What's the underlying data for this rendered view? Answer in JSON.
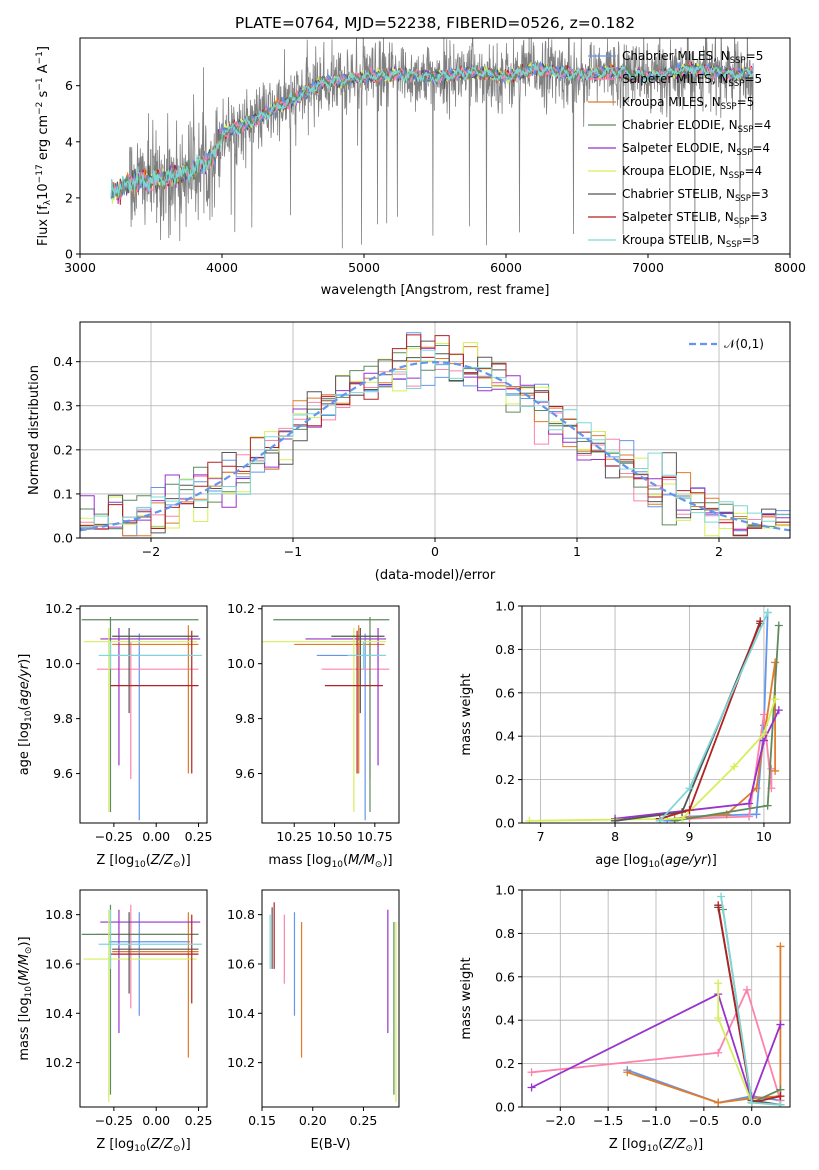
{
  "figure": {
    "title": "PLATE=0764, MJD=52238, FIBERID=0526, z=0.182"
  },
  "colors": {
    "Chabrier MILES": "#6495ed",
    "Salpeter MILES": "#ff82ab",
    "Kroupa MILES": "#e07b2a",
    "Chabrier ELODIE": "#5f8a5f",
    "Salpeter ELODIE": "#9932cc",
    "Kroupa ELODIE": "#d4f05a",
    "Chabrier STELIB": "#555555",
    "Salpeter STELIB": "#b22222",
    "Kroupa STELIB": "#7fd6d6"
  },
  "chart_data": [
    {
      "id": "spectrum",
      "type": "line",
      "title": "PLATE=0764, MJD=52238, FIBERID=0526, z=0.182",
      "xlabel": "wavelength [Angstrom, rest frame]",
      "ylabel_html": [
        "Flux [f",
        "λ",
        "10",
        "−17",
        " erg cm",
        "−2",
        " s",
        "−1",
        " A",
        "−1",
        "]"
      ],
      "xlim": [
        3000,
        8000
      ],
      "ylim": [
        0,
        7.7
      ],
      "xticks": [
        "3000",
        "4000",
        "5000",
        "6000",
        "7000",
        "8000"
      ],
      "yticks": [
        "0",
        "2",
        "4",
        "6"
      ],
      "legend": [
        {
          "name": "Chabrier MILES",
          "nssp": "5"
        },
        {
          "name": "Salpeter MILES",
          "nssp": "5"
        },
        {
          "name": "Kroupa MILES",
          "nssp": "5"
        },
        {
          "name": "Chabrier ELODIE",
          "nssp": "4"
        },
        {
          "name": "Salpeter ELODIE",
          "nssp": "4"
        },
        {
          "name": "Kroupa ELODIE",
          "nssp": "4"
        },
        {
          "name": "Chabrier STELIB",
          "nssp": "3"
        },
        {
          "name": "Salpeter STELIB",
          "nssp": "3"
        },
        {
          "name": "Kroupa STELIB",
          "nssp": "3"
        }
      ],
      "legend_placement": "top-right",
      "data_range_x": [
        3220,
        7740
      ],
      "continuum": {
        "x": [
          3220,
          3400,
          3600,
          3800,
          3950,
          4000,
          4200,
          4500,
          4700,
          5000,
          5200,
          5500,
          5800,
          6000,
          6200,
          6500,
          6800,
          7000,
          7300,
          7600,
          7740
        ],
        "y": [
          2.2,
          2.6,
          2.7,
          3.0,
          3.5,
          4.3,
          4.7,
          5.5,
          6.1,
          6.3,
          6.4,
          6.3,
          6.5,
          6.3,
          6.6,
          6.4,
          6.5,
          6.3,
          6.6,
          6.4,
          6.5
        ]
      },
      "grid": false
    },
    {
      "id": "residuals",
      "type": "step",
      "xlabel": "(data-model)/error",
      "ylabel": "Normed distribution",
      "xlim": [
        -2.5,
        2.5
      ],
      "ylim": [
        0,
        0.49
      ],
      "xticks": [
        "−2",
        "−1",
        "0",
        "1",
        "2"
      ],
      "yticks": [
        "0.0",
        "0.1",
        "0.2",
        "0.3",
        "0.4"
      ],
      "bin_width": 0.1,
      "reference_curve": {
        "name": "𝒩(0,1)",
        "style": "dashed"
      },
      "legend_placement": "top-right",
      "grid": true
    },
    {
      "id": "age_vs_Z",
      "type": "errorbar",
      "xlabel": "Z [log10(Z/Z⊙)]",
      "ylabel": "age  [log10(age/yr)]",
      "xlim": [
        -0.45,
        0.3
      ],
      "ylim": [
        9.42,
        10.21
      ],
      "xticks": [
        "−0.25",
        "0.00",
        "0.25"
      ],
      "yticks": [
        "9.6",
        "9.8",
        "10.0",
        "10.2"
      ],
      "points": [
        {
          "series": "Chabrier MILES",
          "x": -0.1,
          "xerr": [
            0.18,
            0.3
          ],
          "y": 10.03,
          "yerr": [
            0.6,
            0.08
          ]
        },
        {
          "series": "Salpeter MILES",
          "x": -0.15,
          "xerr": [
            0.2,
            0.4
          ],
          "y": 9.98,
          "yerr": [
            0.4,
            0.1
          ]
        },
        {
          "series": "Kroupa MILES",
          "x": 0.19,
          "xerr": [
            0.45,
            0.06
          ],
          "y": 10.07,
          "yerr": [
            0.47,
            0.07
          ]
        },
        {
          "series": "Chabrier ELODIE",
          "x": -0.27,
          "xerr": [
            0.17,
            0.52
          ],
          "y": 10.16,
          "yerr": [
            0.7,
            0.01
          ]
        },
        {
          "series": "Salpeter ELODIE",
          "x": -0.22,
          "xerr": [
            0.11,
            0.48
          ],
          "y": 10.09,
          "yerr": [
            0.46,
            0.04
          ]
        },
        {
          "series": "Kroupa ELODIE",
          "x": -0.28,
          "xerr": [
            0.15,
            0.52
          ],
          "y": 10.08,
          "yerr": [
            0.62,
            0.05
          ]
        },
        {
          "series": "Chabrier STELIB",
          "x": -0.16,
          "xerr": [
            0.1,
            0.41
          ],
          "y": 10.1,
          "yerr": [
            0.28,
            0.03
          ]
        },
        {
          "series": "Salpeter STELIB",
          "x": 0.21,
          "xerr": [
            0.48,
            0.04
          ],
          "y": 9.92,
          "yerr": [
            0.32,
            0.2
          ]
        },
        {
          "series": "Kroupa STELIB",
          "x": -0.27,
          "xerr": [
            0.07,
            0.54
          ],
          "y": 10.03,
          "yerr": [
            0.05,
            0.05
          ]
        }
      ],
      "grid": false
    },
    {
      "id": "age_vs_mass",
      "type": "errorbar",
      "xlabel": "mass [log10(M/M⊙)]",
      "ylabel": "",
      "xlim": [
        10.05,
        10.9
      ],
      "ylim": [
        9.42,
        10.21
      ],
      "xticks": [
        "10.25",
        "10.50",
        "10.75"
      ],
      "yticks": [
        "9.6",
        "9.8",
        "10.0",
        "10.2"
      ],
      "points": [
        {
          "series": "Chabrier MILES",
          "x": 10.69,
          "xerr": [
            0.3,
            0.12
          ],
          "y": 10.03,
          "yerr": [
            0.6,
            0.08
          ]
        },
        {
          "series": "Salpeter MILES",
          "x": 10.72,
          "xerr": [
            0.3,
            0.12
          ],
          "y": 9.98,
          "yerr": [
            0.4,
            0.1
          ]
        },
        {
          "series": "Kroupa MILES",
          "x": 10.65,
          "xerr": [
            0.4,
            0.16
          ],
          "y": 10.07,
          "yerr": [
            0.47,
            0.07
          ]
        },
        {
          "series": "Chabrier ELODIE",
          "x": 10.72,
          "xerr": [
            0.6,
            0.12
          ],
          "y": 10.16,
          "yerr": [
            0.7,
            0.01
          ]
        },
        {
          "series": "Salpeter ELODIE",
          "x": 10.77,
          "xerr": [
            0.45,
            0.05
          ],
          "y": 10.09,
          "yerr": [
            0.46,
            0.04
          ]
        },
        {
          "series": "Kroupa ELODIE",
          "x": 10.62,
          "xerr": [
            0.58,
            0.2
          ],
          "y": 10.08,
          "yerr": [
            0.62,
            0.05
          ]
        },
        {
          "series": "Chabrier STELIB",
          "x": 10.66,
          "xerr": [
            0.18,
            0.15
          ],
          "y": 10.1,
          "yerr": [
            0.28,
            0.03
          ]
        },
        {
          "series": "Salpeter STELIB",
          "x": 10.64,
          "xerr": [
            0.2,
            0.16
          ],
          "y": 9.92,
          "yerr": [
            0.32,
            0.2
          ]
        },
        {
          "series": "Kroupa STELIB",
          "x": 10.68,
          "xerr": [
            0.1,
            0.14
          ],
          "y": 10.03,
          "yerr": [
            0.05,
            0.05
          ]
        }
      ],
      "grid": false
    },
    {
      "id": "sfh_age",
      "type": "line",
      "xlabel": "age  [log10(age/yr)]",
      "ylabel": "mass weight",
      "xlim": [
        6.75,
        10.35
      ],
      "ylim": [
        0,
        1.0
      ],
      "xticks": [
        "7",
        "8",
        "9",
        "10"
      ],
      "yticks": [
        "0.0",
        "0.2",
        "0.4",
        "0.6",
        "0.8",
        "1.0"
      ],
      "series": [
        {
          "name": "Chabrier MILES",
          "x": [
            8.7,
            9.0,
            9.9,
            10.0,
            10.05
          ],
          "y": [
            0.01,
            0.03,
            0.04,
            0.45,
            0.97
          ]
        },
        {
          "name": "Salpeter MILES",
          "x": [
            9.0,
            9.8,
            10.0,
            10.1,
            10.1
          ],
          "y": [
            0.02,
            0.03,
            0.5,
            0.16,
            0.25
          ]
        },
        {
          "name": "Kroupa MILES",
          "x": [
            8.8,
            9.5,
            9.9,
            10.15,
            10.15
          ],
          "y": [
            0.02,
            0.04,
            0.16,
            0.74,
            0.24
          ]
        },
        {
          "name": "Chabrier ELODIE",
          "x": [
            8.8,
            10.05,
            10.2
          ],
          "y": [
            0.01,
            0.08,
            0.91
          ]
        },
        {
          "name": "Salpeter ELODIE",
          "x": [
            8.0,
            9.8,
            10.0,
            10.2
          ],
          "y": [
            0.02,
            0.09,
            0.38,
            0.52
          ]
        },
        {
          "name": "Kroupa ELODIE",
          "x": [
            6.85,
            8.9,
            9.6,
            10.0,
            10.15
          ],
          "y": [
            0.01,
            0.02,
            0.26,
            0.41,
            0.57
          ]
        },
        {
          "name": "Chabrier STELIB",
          "x": [
            8.0,
            8.9,
            9.95
          ],
          "y": [
            0.01,
            0.05,
            0.92
          ]
        },
        {
          "name": "Salpeter STELIB",
          "x": [
            8.6,
            9.0,
            9.95
          ],
          "y": [
            0.02,
            0.06,
            0.93
          ]
        },
        {
          "name": "Kroupa STELIB",
          "x": [
            8.6,
            9.0,
            10.05
          ],
          "y": [
            0.01,
            0.16,
            0.97
          ]
        }
      ],
      "grid": true
    },
    {
      "id": "mass_vs_Z",
      "type": "errorbar",
      "xlabel": "Z [log10(Z/Z⊙)]",
      "ylabel": "mass [log10(M/M⊙)]",
      "xlim": [
        -0.45,
        0.3
      ],
      "ylim": [
        10.02,
        10.9
      ],
      "xticks": [
        "−0.25",
        "0.00",
        "0.25"
      ],
      "yticks": [
        "10.2",
        "10.4",
        "10.6",
        "10.8"
      ],
      "points": [
        {
          "series": "Chabrier MILES",
          "x": -0.1,
          "xerr": [
            0.18,
            0.3
          ],
          "y": 10.69,
          "yerr": [
            0.3,
            0.12
          ]
        },
        {
          "series": "Salpeter MILES",
          "x": -0.15,
          "xerr": [
            0.2,
            0.4
          ],
          "y": 10.72,
          "yerr": [
            0.3,
            0.12
          ]
        },
        {
          "series": "Kroupa MILES",
          "x": 0.19,
          "xerr": [
            0.45,
            0.06
          ],
          "y": 10.65,
          "yerr": [
            0.43,
            0.16
          ]
        },
        {
          "series": "Chabrier ELODIE",
          "x": -0.27,
          "xerr": [
            0.17,
            0.52
          ],
          "y": 10.72,
          "yerr": [
            0.65,
            0.12
          ]
        },
        {
          "series": "Salpeter ELODIE",
          "x": -0.22,
          "xerr": [
            0.11,
            0.48
          ],
          "y": 10.77,
          "yerr": [
            0.45,
            0.05
          ]
        },
        {
          "series": "Kroupa ELODIE",
          "x": -0.28,
          "xerr": [
            0.15,
            0.52
          ],
          "y": 10.62,
          "yerr": [
            0.58,
            0.2
          ]
        },
        {
          "series": "Chabrier STELIB",
          "x": -0.16,
          "xerr": [
            0.1,
            0.41
          ],
          "y": 10.66,
          "yerr": [
            0.18,
            0.15
          ]
        },
        {
          "series": "Salpeter STELIB",
          "x": 0.21,
          "xerr": [
            0.48,
            0.04
          ],
          "y": 10.64,
          "yerr": [
            0.2,
            0.16
          ]
        },
        {
          "series": "Kroupa STELIB",
          "x": -0.27,
          "xerr": [
            0.07,
            0.54
          ],
          "y": 10.68,
          "yerr": [
            0.1,
            0.14
          ]
        }
      ],
      "grid": false
    },
    {
      "id": "mass_vs_ebv",
      "type": "errorbar",
      "xlabel": "E(B-V)",
      "ylabel": "",
      "xlim": [
        0.15,
        0.285
      ],
      "ylim": [
        10.02,
        10.9
      ],
      "xticks": [
        "0.15",
        "0.20",
        "0.25"
      ],
      "yticks": [
        "10.2",
        "10.4",
        "10.6",
        "10.8"
      ],
      "points": [
        {
          "series": "Chabrier MILES",
          "x": 0.182,
          "y": 10.69,
          "yerr": [
            0.3,
            0.12
          ]
        },
        {
          "series": "Salpeter MILES",
          "x": 0.172,
          "y": 10.72,
          "yerr": [
            0.2,
            0.08
          ]
        },
        {
          "series": "Kroupa MILES",
          "x": 0.189,
          "y": 10.65,
          "yerr": [
            0.43,
            0.12
          ]
        },
        {
          "series": "Chabrier ELODIE",
          "x": 0.28,
          "y": 10.72,
          "yerr": [
            0.65,
            0.05
          ]
        },
        {
          "series": "Salpeter ELODIE",
          "x": 0.274,
          "y": 10.77,
          "yerr": [
            0.45,
            0.05
          ]
        },
        {
          "series": "Kroupa ELODIE",
          "x": 0.282,
          "y": 10.62,
          "yerr": [
            0.58,
            0.15
          ]
        },
        {
          "series": "Chabrier STELIB",
          "x": 0.16,
          "y": 10.66,
          "yerr": [
            0.08,
            0.17
          ]
        },
        {
          "series": "Salpeter STELIB",
          "x": 0.162,
          "y": 10.64,
          "yerr": [
            0.06,
            0.21
          ]
        },
        {
          "series": "Kroupa STELIB",
          "x": 0.158,
          "y": 10.68,
          "yerr": [
            0.1,
            0.12
          ]
        }
      ],
      "grid": false
    },
    {
      "id": "sfh_Z",
      "type": "line",
      "xlabel": "Z [log10(Z/Z⊙)]",
      "ylabel": "mass weight",
      "xlim": [
        -2.4,
        0.4
      ],
      "ylim": [
        0,
        1.0
      ],
      "xticks": [
        "−2.0",
        "−1.5",
        "−1.0",
        "−0.5",
        "0.0"
      ],
      "yticks": [
        "0.0",
        "0.2",
        "0.4",
        "0.6",
        "0.8",
        "1.0"
      ],
      "series": [
        {
          "name": "Chabrier MILES",
          "x": [
            -1.3,
            -0.35,
            0.0,
            0.3
          ],
          "y": [
            0.17,
            0.02,
            0.05,
            0.03
          ]
        },
        {
          "name": "Salpeter MILES",
          "x": [
            -2.3,
            -0.35,
            -0.05,
            0.3
          ],
          "y": [
            0.16,
            0.25,
            0.54,
            0.03
          ]
        },
        {
          "name": "Kroupa MILES",
          "x": [
            -1.3,
            -0.35,
            0.0,
            0.3,
            0.3
          ],
          "y": [
            0.16,
            0.02,
            0.04,
            0.05,
            0.74
          ]
        },
        {
          "name": "Chabrier ELODIE",
          "x": [
            -0.3,
            0.0,
            0.3
          ],
          "y": [
            0.91,
            0.02,
            0.08
          ]
        },
        {
          "name": "Salpeter ELODIE",
          "x": [
            -2.3,
            -0.35,
            0.0,
            0.3
          ],
          "y": [
            0.09,
            0.52,
            0.03,
            0.38
          ]
        },
        {
          "name": "Kroupa ELODIE",
          "x": [
            -0.35,
            -0.35,
            0.0,
            0.3
          ],
          "y": [
            0.57,
            0.41,
            0.02,
            0.01
          ]
        },
        {
          "name": "Chabrier STELIB",
          "x": [
            -0.35,
            0.0,
            0.3
          ],
          "y": [
            0.92,
            0.03,
            0.01
          ]
        },
        {
          "name": "Salpeter STELIB",
          "x": [
            -0.35,
            0.0,
            0.3
          ],
          "y": [
            0.93,
            0.02,
            0.05
          ]
        },
        {
          "name": "Kroupa STELIB",
          "x": [
            -0.32,
            0.0,
            0.3
          ],
          "y": [
            0.97,
            0.02,
            0.01
          ]
        }
      ],
      "grid": true
    }
  ]
}
